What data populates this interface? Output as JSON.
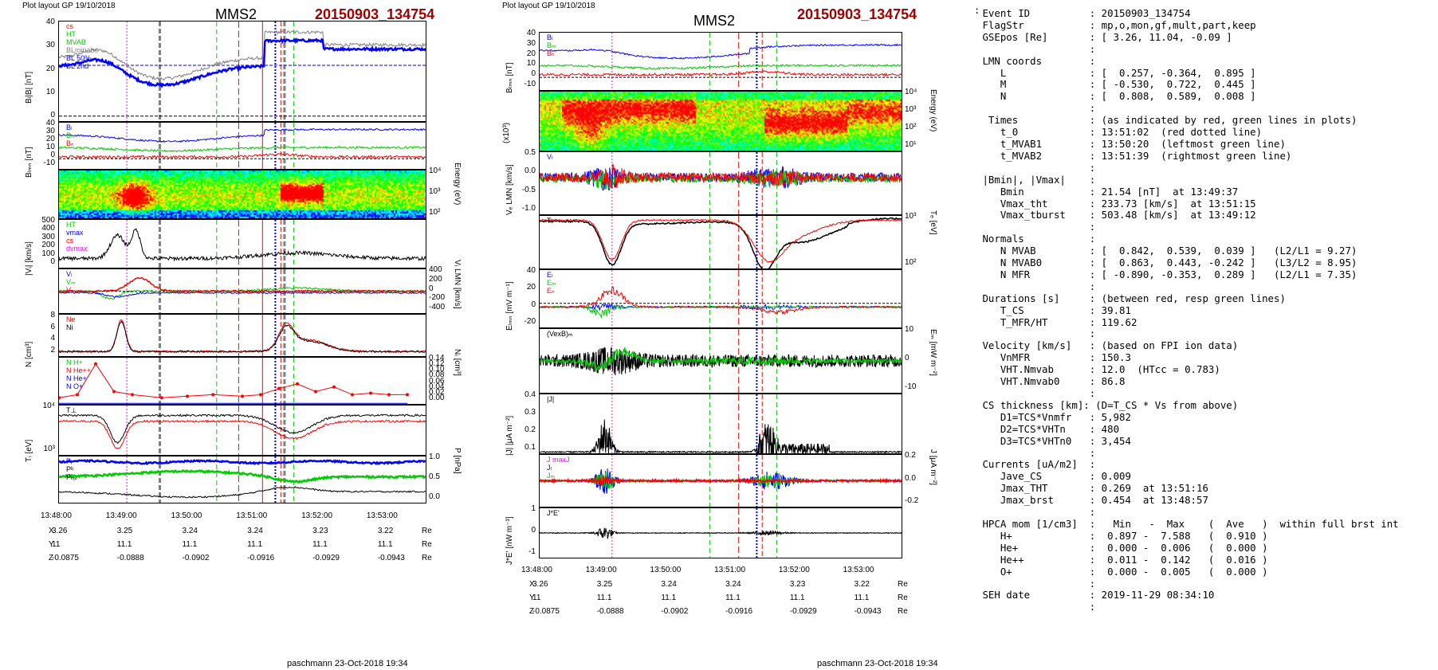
{
  "left_plot": {
    "header": "Plot layout GP 19/10/2018",
    "spacecraft": "MMS2",
    "event": "20150903_134754",
    "ylabels": [
      "Bₗ|B| [nT]",
      "Bₗₘₙ [nT]",
      "|Vᵢ| [km/s]",
      "N [cm³]",
      "Tᵢ [eV]"
    ],
    "ylabels_right": [
      "Energy (eV)",
      "Vᵢ LMN [km/s]",
      "Nᵢ [cm³]",
      "P [nPa]"
    ],
    "legend_b": [
      "cs",
      "HT",
      "MVAB",
      "BLminabs",
      "BL 50%",
      "BL 2nd"
    ],
    "legend_blmn": [
      "Bₗ",
      "Bₘ",
      "Bₙ"
    ],
    "legend_v": [
      "HT",
      "vmax",
      "cs",
      "dvmax"
    ],
    "legend_vlmn": [
      "Vₗ",
      "Vₘ",
      "Vₙ"
    ],
    "legend_n": [
      "Ne",
      "Ni"
    ],
    "legend_hpca": [
      "N  H+",
      "N  He++",
      "N  He+",
      "N  O+"
    ],
    "legend_t": [
      "T⊥"
    ],
    "legend_p": [
      "Pᵢ",
      "Pᵇ",
      "Pₜₒₜ"
    ],
    "footer": "paschmann 23-Oct-2018 19:34"
  },
  "right_plot": {
    "header": "Plot layout GP 19/10/2018",
    "spacecraft": "MMS2",
    "event": "20150903_134754",
    "ylabels": [
      "Bₗₘₙ [nT]",
      "Vₑ LMN [km/s]",
      "Eₗₘₙ [mV m⁻¹]",
      "|J| [μA m⁻²]",
      "J*E' [nW m⁻³]"
    ],
    "ylabels_right": [
      "Energy (eV)",
      "Tₑ [eV]",
      "Eₘ [mW m⁻²]",
      "J [μA m⁻²]"
    ],
    "legend_b": [
      "Bₗ",
      "Bₘ",
      "Bₙ"
    ],
    "legend_v": [
      "Vₗ"
    ],
    "legend_t": [
      "Tᵢ"
    ],
    "legend_e": [
      "Eₗ",
      "Eₘ",
      "Eₙ"
    ],
    "legend_vexb": [
      "(VexB)ₘ"
    ],
    "legend_j": [
      "|J|"
    ],
    "legend_jlmn": [
      "J maxJ",
      "Jₗ",
      "Jₘ"
    ],
    "legend_je": [
      "J*E'"
    ],
    "exp_label": "(x10³)",
    "footer": "paschmann 23-Oct-2018 19:34"
  },
  "time_axis": [
    "13:48:00",
    "13:49:00",
    "13:50:00",
    "13:51:00",
    "13:52:00",
    "13:53:00"
  ],
  "coords": {
    "X": [
      "3.26",
      "3.25",
      "3.24",
      "3.24",
      "3.23",
      "3.22"
    ],
    "Y": [
      "11",
      "11.1",
      "11.1",
      "11.1",
      "11.1",
      "11.1"
    ],
    "Z": [
      "-0.0875",
      "-0.0888",
      "-0.0902",
      "-0.0916",
      "-0.0929",
      "-0.0943"
    ],
    "unit": "Re",
    "row_labels": [
      "X",
      "Y",
      "Z"
    ]
  },
  "ticks_left": {
    "p1": [
      "40",
      "30",
      "20",
      "10",
      "0"
    ],
    "p2": [
      "40",
      "30",
      "20",
      "10",
      "0",
      "-10"
    ],
    "energy": [
      "10⁴",
      "10³",
      "10²"
    ],
    "p4": [
      "500",
      "400",
      "300",
      "200",
      "100",
      "0"
    ],
    "p5r": [
      "400",
      "200",
      "0",
      "-200",
      "-400"
    ],
    "p6": [
      "8",
      "6",
      "4",
      "2"
    ],
    "p7r": [
      "0.14",
      "0.12",
      "0.10",
      "0.08",
      "0.06",
      "0.04",
      "0.02",
      "0.00"
    ],
    "p8": [
      "10⁴",
      "10³"
    ],
    "p9r": [
      "1.0",
      "0.5",
      "0.0"
    ]
  },
  "ticks_right": {
    "p1": [
      "40",
      "30",
      "20",
      "10",
      "0",
      "-10"
    ],
    "energy": [
      "10⁴",
      "10³",
      "10²",
      "10¹"
    ],
    "p3": [
      "0.5",
      "0.0",
      "-0.5",
      "-1.0"
    ],
    "p4r": [
      "10³",
      "10²"
    ],
    "p5": [
      "40",
      "20",
      "0",
      "-20"
    ],
    "p6r": [
      "10",
      "0",
      "-10"
    ],
    "p7": [
      "0.4",
      "0.3",
      "0.2",
      "0.1"
    ],
    "p8r": [
      "0.2",
      "0.0",
      "-0.2"
    ],
    "p9": [
      "1",
      "0",
      "-1"
    ]
  },
  "info_lines": [
    " Event ID          : 20150903_134754",
    " FlagStr           : mp,o,mon,gf,mult,part,keep",
    " GSEpos [Re]       : [ 3.26, 11.04, -0.09 ]",
    "                   :",
    " LMN coords        :",
    "    L              : [  0.257, -0.364,  0.895 ]",
    "    M              : [ -0.530,  0.722,  0.445 ]",
    "    N              : [  0.808,  0.589,  0.008 ]",
    "                   :",
    "  Times            : (as indicated by red, green lines in plots)",
    "    t_0            : 13:51:02  (red dotted line)",
    "    t_MVAB1        : 13:50:20  (leftmost green line)",
    "    t_MVAB2        : 13:51:39  (rightmost green line)",
    "                   :",
    " |Bmin|, |Vmax|    :",
    "    Bmin           : 21.54 [nT]  at 13:49:37",
    "    Vmax_tht       : 233.73 [km/s]  at 13:51:15",
    "    Vmax_tburst    : 503.48 [km/s]  at 13:49:12",
    "                   :",
    " Normals           :",
    "    N MVAB         : [  0.842,  0.539,  0.039 ]   (L2/L1 = 9.27)",
    "    N MVAB0        : [  0.863,  0.443, -0.242 ]   (L3/L2 = 8.95)",
    "    N MFR          : [ -0.890, -0.353,  0.289 ]   (L2/L1 = 7.35)",
    "                   :",
    " Durations [s]     : (between red, resp green lines)",
    "    T_CS           : 39.81",
    "    T_MFR/HT       : 119.62",
    "                   :",
    " Velocity [km/s]   : (based on FPI ion data)",
    "    VnMFR          : 150.3",
    "    VHT.Nmvab      : 12.0  (HTcc = 0.783)",
    "    VHT.Nmvab0     : 86.8",
    "                   :",
    " CS thickness [km]: (D=T_CS * Vs from above)",
    "    D1=TCS*Vnmfr   : 5,982",
    "    D2=TCS*VHTn    : 480",
    "    D3=TCS*VHTn0   : 3,454",
    "                   :",
    " Currents [uA/m2]  :",
    "    Jave_CS        : 0.009",
    "    Jmax_THT       : 0.269  at 13:51:16",
    "    Jmax_brst      : 0.454  at 13:48:57",
    "                   :",
    " HPCA mom [1/cm3]  :   Min   -  Max    (  Ave   )  within full brst int",
    "    H+             :  0.897 -  7.588   (  0.910 )",
    "    He+            :  0.000 -  0.006   (  0.000 )",
    "    He++           :  0.011 -  0.142   (  0.016 )",
    "    O+             :  0.000 -  0.005   (  0.000 )",
    "                   :",
    " SEH date          : 2019-11-29 08:34:10",
    "                   :"
  ],
  "info_top": ":",
  "colors": {
    "red": "#ff0000",
    "green": "#00cc00",
    "blue": "#0000ff",
    "black": "#000000",
    "magenta": "#ff00ff",
    "title_red": "#a00000",
    "gray": "#808080"
  }
}
